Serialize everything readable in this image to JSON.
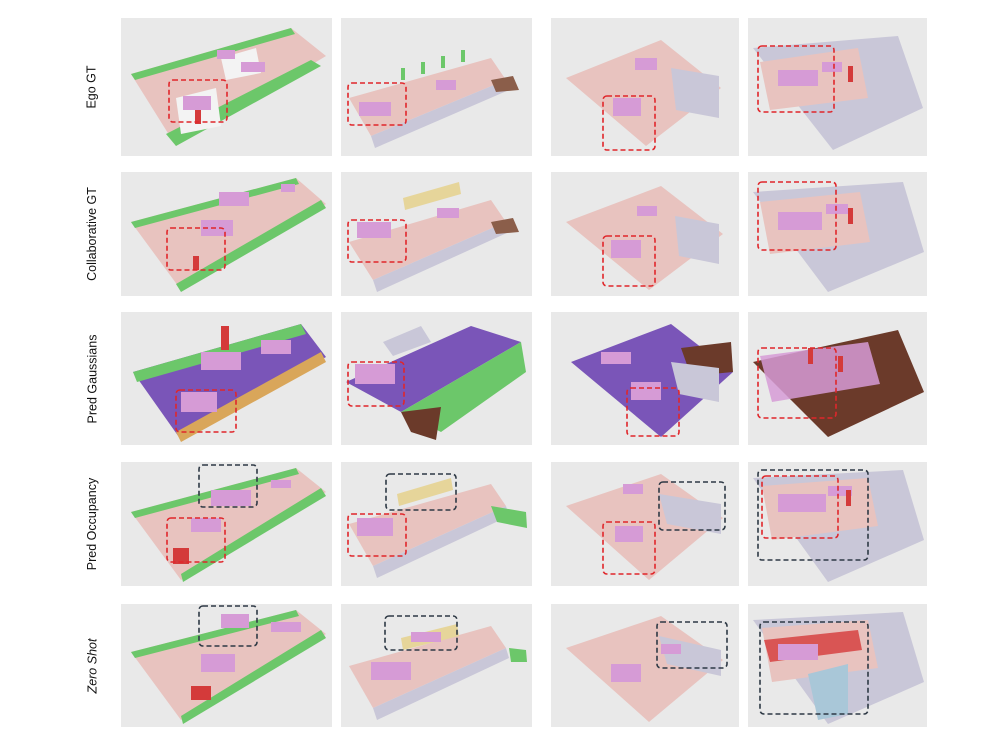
{
  "figure": {
    "rows": [
      {
        "label": "Ego GT",
        "italic": false
      },
      {
        "label": "Collaborative GT",
        "italic": false
      },
      {
        "label": "Pred Gaussians",
        "italic": false
      },
      {
        "label": "Pred Occupancy",
        "italic": false
      },
      {
        "label": "Zero Shot",
        "italic": true
      }
    ],
    "columns": 4,
    "colors": {
      "panel_bg": "#e9e9e9",
      "road": "#e8c3bf",
      "vegetation": "#6cc76a",
      "vehicle": "#d69bd6",
      "pole": "#d43a3a",
      "sidewalk": "#c9c7d8",
      "pred_road": "#7a55b8",
      "terrain": "#6b3a2a",
      "fence": "#e6d59a",
      "highlight_red": "#e0262a",
      "highlight_dark": "#2e3945"
    }
  }
}
